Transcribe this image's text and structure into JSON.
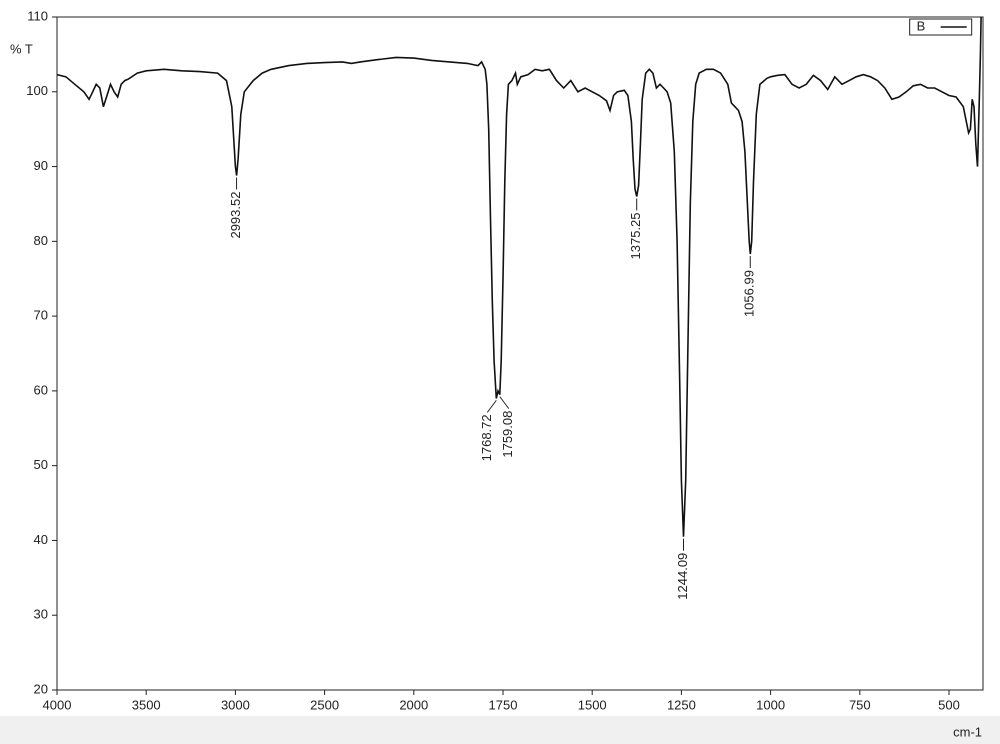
{
  "chart_data": {
    "type": "line",
    "ylabel": "% T",
    "xlabel": "cm-1",
    "xlim": [
      4000,
      400
    ],
    "ylim": [
      20,
      110
    ],
    "xticks": [
      4000,
      3500,
      3000,
      2500,
      2000,
      1750,
      1500,
      1250,
      1000,
      750,
      500
    ],
    "yticks": [
      20,
      30,
      40,
      50,
      60,
      70,
      80,
      90,
      100,
      110
    ],
    "legend": "top-right",
    "series": [
      {
        "name": "B",
        "color": "#111111",
        "x": [
          4000,
          3950,
          3900,
          3850,
          3820,
          3800,
          3780,
          3760,
          3740,
          3720,
          3700,
          3680,
          3660,
          3640,
          3620,
          3600,
          3550,
          3500,
          3400,
          3300,
          3200,
          3100,
          3050,
          3020,
          3000,
          2993.52,
          2985,
          2970,
          2950,
          2900,
          2850,
          2800,
          2700,
          2600,
          2500,
          2400,
          2350,
          2300,
          2200,
          2100,
          2000,
          1950,
          1900,
          1850,
          1820,
          1810,
          1800,
          1795,
          1790,
          1785,
          1780,
          1775,
          1768.72,
          1764,
          1759.08,
          1755,
          1750,
          1745,
          1740,
          1735,
          1725,
          1715,
          1710,
          1700,
          1680,
          1660,
          1640,
          1620,
          1600,
          1580,
          1560,
          1540,
          1520,
          1500,
          1480,
          1460,
          1450,
          1440,
          1430,
          1410,
          1400,
          1390,
          1385,
          1380,
          1375.25,
          1370,
          1365,
          1360,
          1350,
          1340,
          1330,
          1320,
          1310,
          1300,
          1290,
          1280,
          1270,
          1262,
          1255,
          1250,
          1244.09,
          1238,
          1232,
          1225,
          1218,
          1210,
          1200,
          1180,
          1160,
          1140,
          1120,
          1110,
          1100,
          1090,
          1080,
          1072,
          1065,
          1060,
          1056.99,
          1053,
          1048,
          1040,
          1030,
          1010,
          1000,
          980,
          960,
          940,
          920,
          900,
          880,
          860,
          840,
          820,
          800,
          780,
          760,
          740,
          720,
          700,
          680,
          660,
          640,
          620,
          600,
          580,
          560,
          540,
          520,
          500,
          480,
          460,
          445,
          440,
          435,
          430,
          425,
          420,
          415,
          412,
          410
        ],
        "values": [
          102.3,
          102,
          101,
          100,
          99,
          100,
          101,
          100.5,
          98,
          99.5,
          101,
          100,
          99.3,
          101,
          101.5,
          101.7,
          102.5,
          102.8,
          103,
          102.8,
          102.7,
          102.5,
          101.5,
          98,
          90,
          88.8,
          91,
          97,
          100,
          101.5,
          102.5,
          103,
          103.5,
          103.8,
          103.9,
          104,
          103.8,
          104,
          104.3,
          104.6,
          104.5,
          104.2,
          104,
          103.8,
          103.5,
          104,
          103,
          101,
          95,
          83,
          72,
          64,
          59,
          60,
          59.5,
          64,
          75,
          88,
          97,
          101,
          101.5,
          102.5,
          101,
          102,
          102.3,
          103,
          102.8,
          103,
          101.5,
          100.5,
          101.5,
          100,
          100.5,
          100,
          99.5,
          98.8,
          97.5,
          99.5,
          100,
          100.2,
          99.5,
          96,
          91,
          87,
          86,
          87.5,
          93,
          99,
          102.5,
          103,
          102.5,
          100.5,
          101,
          100.5,
          100,
          98.5,
          92,
          80,
          62,
          48,
          40.5,
          48,
          65,
          85,
          96,
          101,
          102.5,
          103,
          103,
          102.5,
          101,
          98.5,
          98,
          97.5,
          96,
          92,
          85,
          80,
          78.3,
          80,
          88,
          97,
          101,
          101.8,
          102,
          102.2,
          102.3,
          101,
          100.5,
          101,
          102.2,
          101.5,
          100.3,
          102,
          101,
          101.5,
          102,
          102.3,
          102,
          101.5,
          100.5,
          99,
          99.3,
          100,
          100.8,
          101,
          100.5,
          100.5,
          100,
          99.5,
          99.3,
          98,
          94.5,
          95,
          99,
          98,
          93,
          90,
          99,
          105,
          110
        ]
      }
    ],
    "peaks": {
      "x": [
        2993.52,
        1768.72,
        1759.08,
        1375.25,
        1244.09,
        1056.99
      ],
      "y": [
        88.8,
        59,
        59.5,
        86,
        40.5,
        78.3
      ]
    }
  }
}
